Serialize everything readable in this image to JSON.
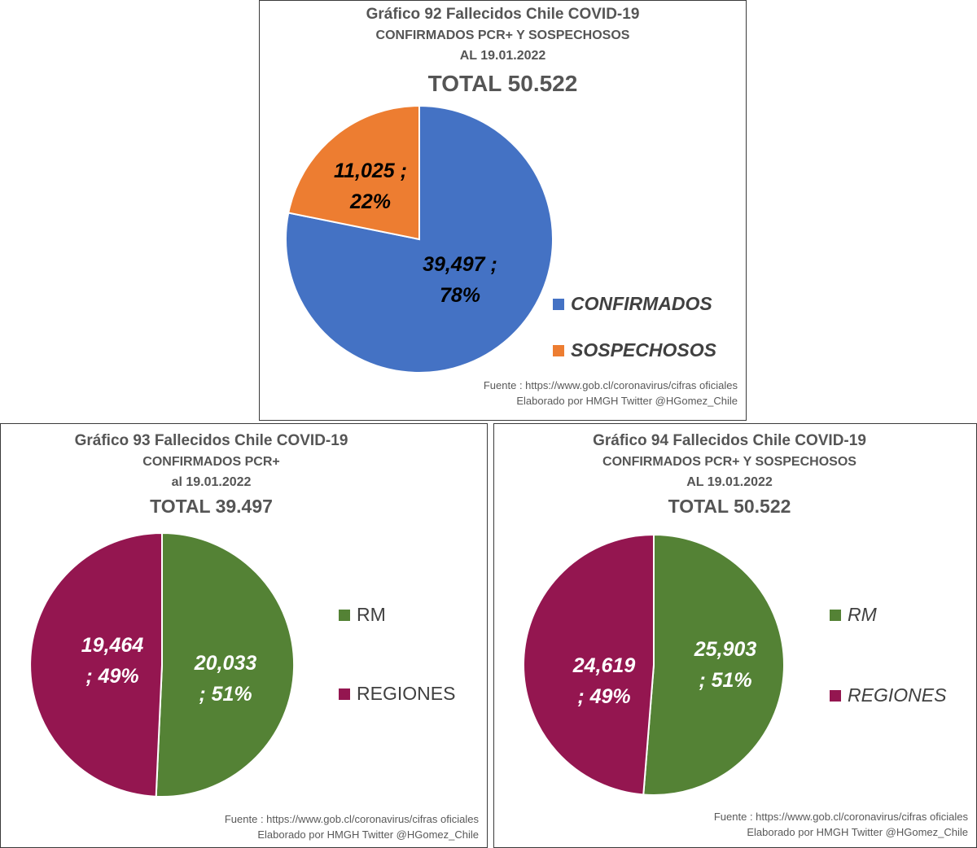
{
  "colors": {
    "confirmados": "#4472C4",
    "sospechosos": "#ED7D31",
    "rm": "#548235",
    "regiones": "#941650",
    "title_text": "#555555",
    "legend_text": "#404040"
  },
  "chart_data": [
    {
      "type": "pie",
      "title": "Gráfico 92 Fallecidos Chile COVID-19",
      "subtitle": "CONFIRMADOS PCR+ Y  SOSPECHOSOS",
      "date": "AL 19.01.2022",
      "total": "TOTAL 50.522",
      "slices": [
        {
          "name": "CONFIRMADOS",
          "value": 39497,
          "label_value": "39,497 ;",
          "label_pct": "78%"
        },
        {
          "name": "SOSPECHOSOS",
          "value": 11025,
          "label_value": "11,025 ;",
          "label_pct": "22%"
        }
      ],
      "legend": [
        "CONFIRMADOS",
        "SOSPECHOSOS"
      ],
      "source_line1": "Fuente  : https://www.gob.cl/coronavirus/cifras oficiales",
      "source_line2": "Elaborado por HMGH  Twitter @HGomez_Chile"
    },
    {
      "type": "pie",
      "title": "Gráfico 93 Fallecidos Chile COVID-19",
      "subtitle": "CONFIRMADOS PCR+",
      "date": "al 19.01.2022",
      "total": "TOTAL 39.497",
      "slices": [
        {
          "name": "RM",
          "value": 20033,
          "label_value": "20,033",
          "label_pct": "; 51%"
        },
        {
          "name": "REGIONES",
          "value": 19464,
          "label_value": "19,464",
          "label_pct": "; 49%"
        }
      ],
      "legend": [
        "RM",
        "REGIONES"
      ],
      "source_line1": "Fuente  : https://www.gob.cl/coronavirus/cifras oficiales",
      "source_line2": "Elaborado por HMGH  Twitter  @HGomez_Chile"
    },
    {
      "type": "pie",
      "title": "Gráfico 94 Fallecidos Chile COVID-19",
      "subtitle": "CONFIRMADOS PCR+ Y  SOSPECHOSOS",
      "date": "AL 19.01.2022",
      "total": "TOTAL 50.522",
      "slices": [
        {
          "name": "RM",
          "value": 25903,
          "label_value": "25,903",
          "label_pct": "; 51%"
        },
        {
          "name": "REGIONES",
          "value": 24619,
          "label_value": "24,619",
          "label_pct": "; 49%"
        }
      ],
      "legend": [
        "RM",
        "REGIONES"
      ],
      "source_line1": "Fuente   : https://www.gob.cl/coronavirus/cifras oficiales",
      "source_line2": "Elaborado por HMGH  Twitter @HGomez_Chile"
    }
  ]
}
